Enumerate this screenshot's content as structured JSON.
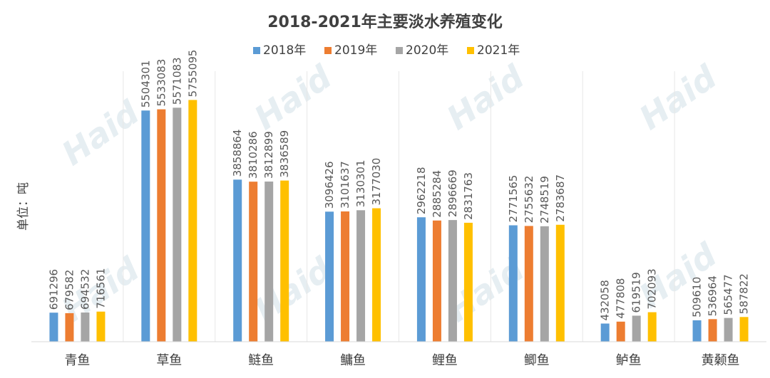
{
  "chart_data": {
    "type": "bar",
    "title": "2018-2021年主要淡水养殖变化",
    "ylabel": "单位：吨",
    "xlabel": "",
    "ylim": [
      0,
      6000000
    ],
    "grid": false,
    "legend": "top",
    "categories": [
      "青鱼",
      "草鱼",
      "鲢鱼",
      "鳙鱼",
      "鲤鱼",
      "鲫鱼",
      "鲈鱼",
      "黄颡鱼"
    ],
    "series": [
      {
        "name": "2018年",
        "color": "#5b9bd5",
        "values": [
          691296,
          5504301,
          3858864,
          3096426,
          2962218,
          2771565,
          432058,
          509610
        ]
      },
      {
        "name": "2019年",
        "color": "#ed7d31",
        "values": [
          679582,
          5533083,
          3810286,
          3101637,
          2885284,
          2755632,
          477808,
          536964
        ]
      },
      {
        "name": "2020年",
        "color": "#a5a5a5",
        "values": [
          694532,
          5571083,
          3812899,
          3130301,
          2896669,
          2748519,
          619519,
          565477
        ]
      },
      {
        "name": "2021年",
        "color": "#ffc000",
        "values": [
          716561,
          5755095,
          3836589,
          3177030,
          2831763,
          2783687,
          702093,
          587822
        ]
      }
    ]
  },
  "watermark": {
    "text": "Haid"
  }
}
